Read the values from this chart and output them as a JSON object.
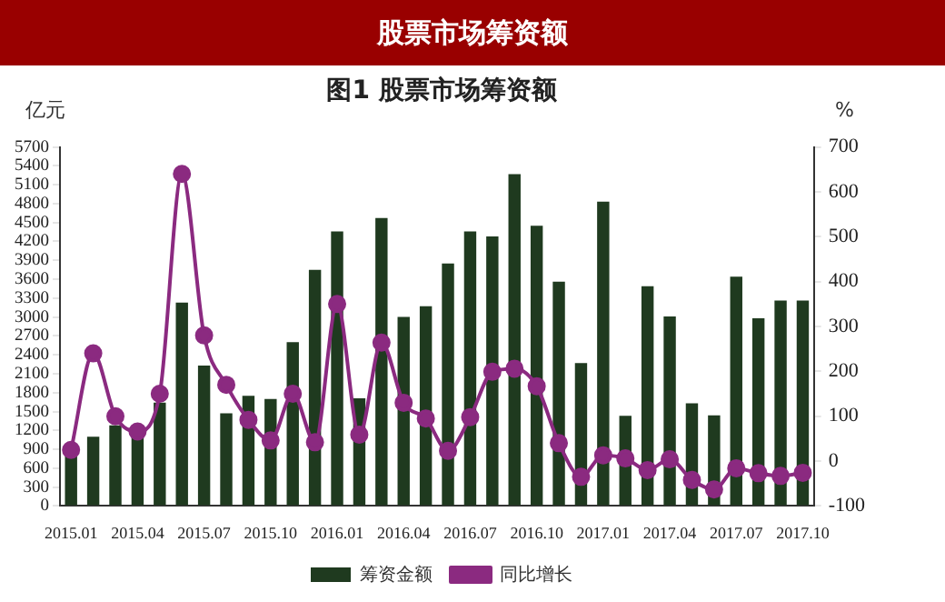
{
  "chart_data": {
    "type": "bar",
    "title": "股票市场筹资额",
    "subtitle": "图1 股票市场筹资额",
    "ylabel": "亿元",
    "y2label": "%",
    "categories": [
      "2015.01",
      null,
      null,
      "2015.04",
      null,
      null,
      "2015.07",
      null,
      null,
      "2015.10",
      null,
      null,
      "2016.01",
      null,
      null,
      "2016.04",
      null,
      null,
      "2016.07",
      null,
      null,
      "2016.10",
      null,
      null,
      "2017.01",
      null,
      null,
      "2017.04",
      null,
      null,
      "2017.07",
      null,
      null,
      "2017.10"
    ],
    "series": [
      {
        "name": "筹资金额",
        "color": "#1f3a1f",
        "values": [
          870,
          1100,
          1280,
          1150,
          1640,
          3230,
          2230,
          1470,
          1750,
          1700,
          2600,
          3750,
          4360,
          1710,
          4570,
          3000,
          3170,
          3850,
          4360,
          4280,
          5270,
          4450,
          3560,
          2270,
          4830,
          1430,
          3490,
          3010,
          1630,
          1440,
          3640,
          2980,
          3260,
          3260
        ]
      },
      {
        "name": "同比增长",
        "type": "line",
        "axis": "y2",
        "color": "#8b2a80",
        "values": [
          25,
          240,
          100,
          66,
          150,
          640,
          280,
          170,
          92,
          46,
          150,
          42,
          350,
          59,
          264,
          130,
          95,
          23,
          98,
          199,
          206,
          167,
          40,
          -35,
          13,
          6,
          -20,
          4,
          -42,
          -63,
          -16,
          -27,
          -33,
          -26
        ]
      }
    ],
    "ylim": [
      0,
      5700
    ],
    "yticks": [
      0,
      300,
      600,
      900,
      1200,
      1500,
      1800,
      2100,
      2400,
      2700,
      3000,
      3300,
      3600,
      3900,
      4200,
      4500,
      4800,
      5100,
      5400,
      5700
    ],
    "y2lim": [
      -100,
      700
    ],
    "y2ticks": [
      -100,
      0,
      100,
      200,
      300,
      400,
      500,
      600,
      700
    ],
    "marker": "circle",
    "grid": false,
    "legend": "bottom"
  }
}
